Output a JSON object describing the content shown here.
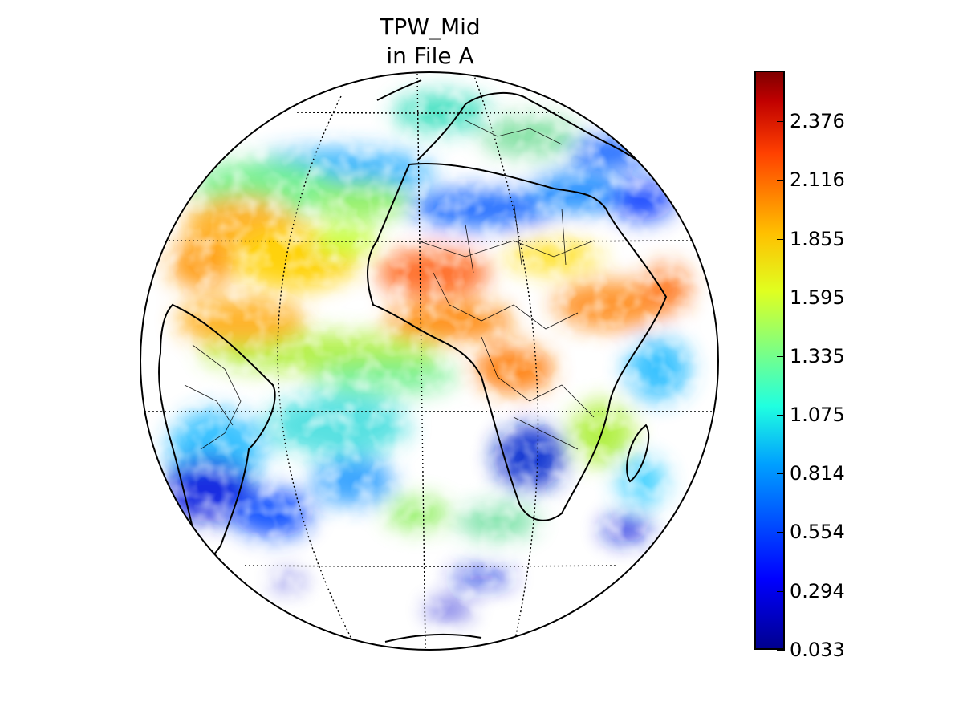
{
  "title": {
    "line1": "TPW_Mid",
    "line2": "in File A"
  },
  "colorbar": {
    "colormap": "jet",
    "min": 0.033,
    "max": 2.6,
    "ticks": [
      "2.376",
      "2.116",
      "1.855",
      "1.595",
      "1.335",
      "1.075",
      "0.814",
      "0.554",
      "0.294",
      "0.033"
    ]
  },
  "map": {
    "projection": "orthographic",
    "graticule": "dotted",
    "coastlines": true,
    "country_borders": true
  }
}
